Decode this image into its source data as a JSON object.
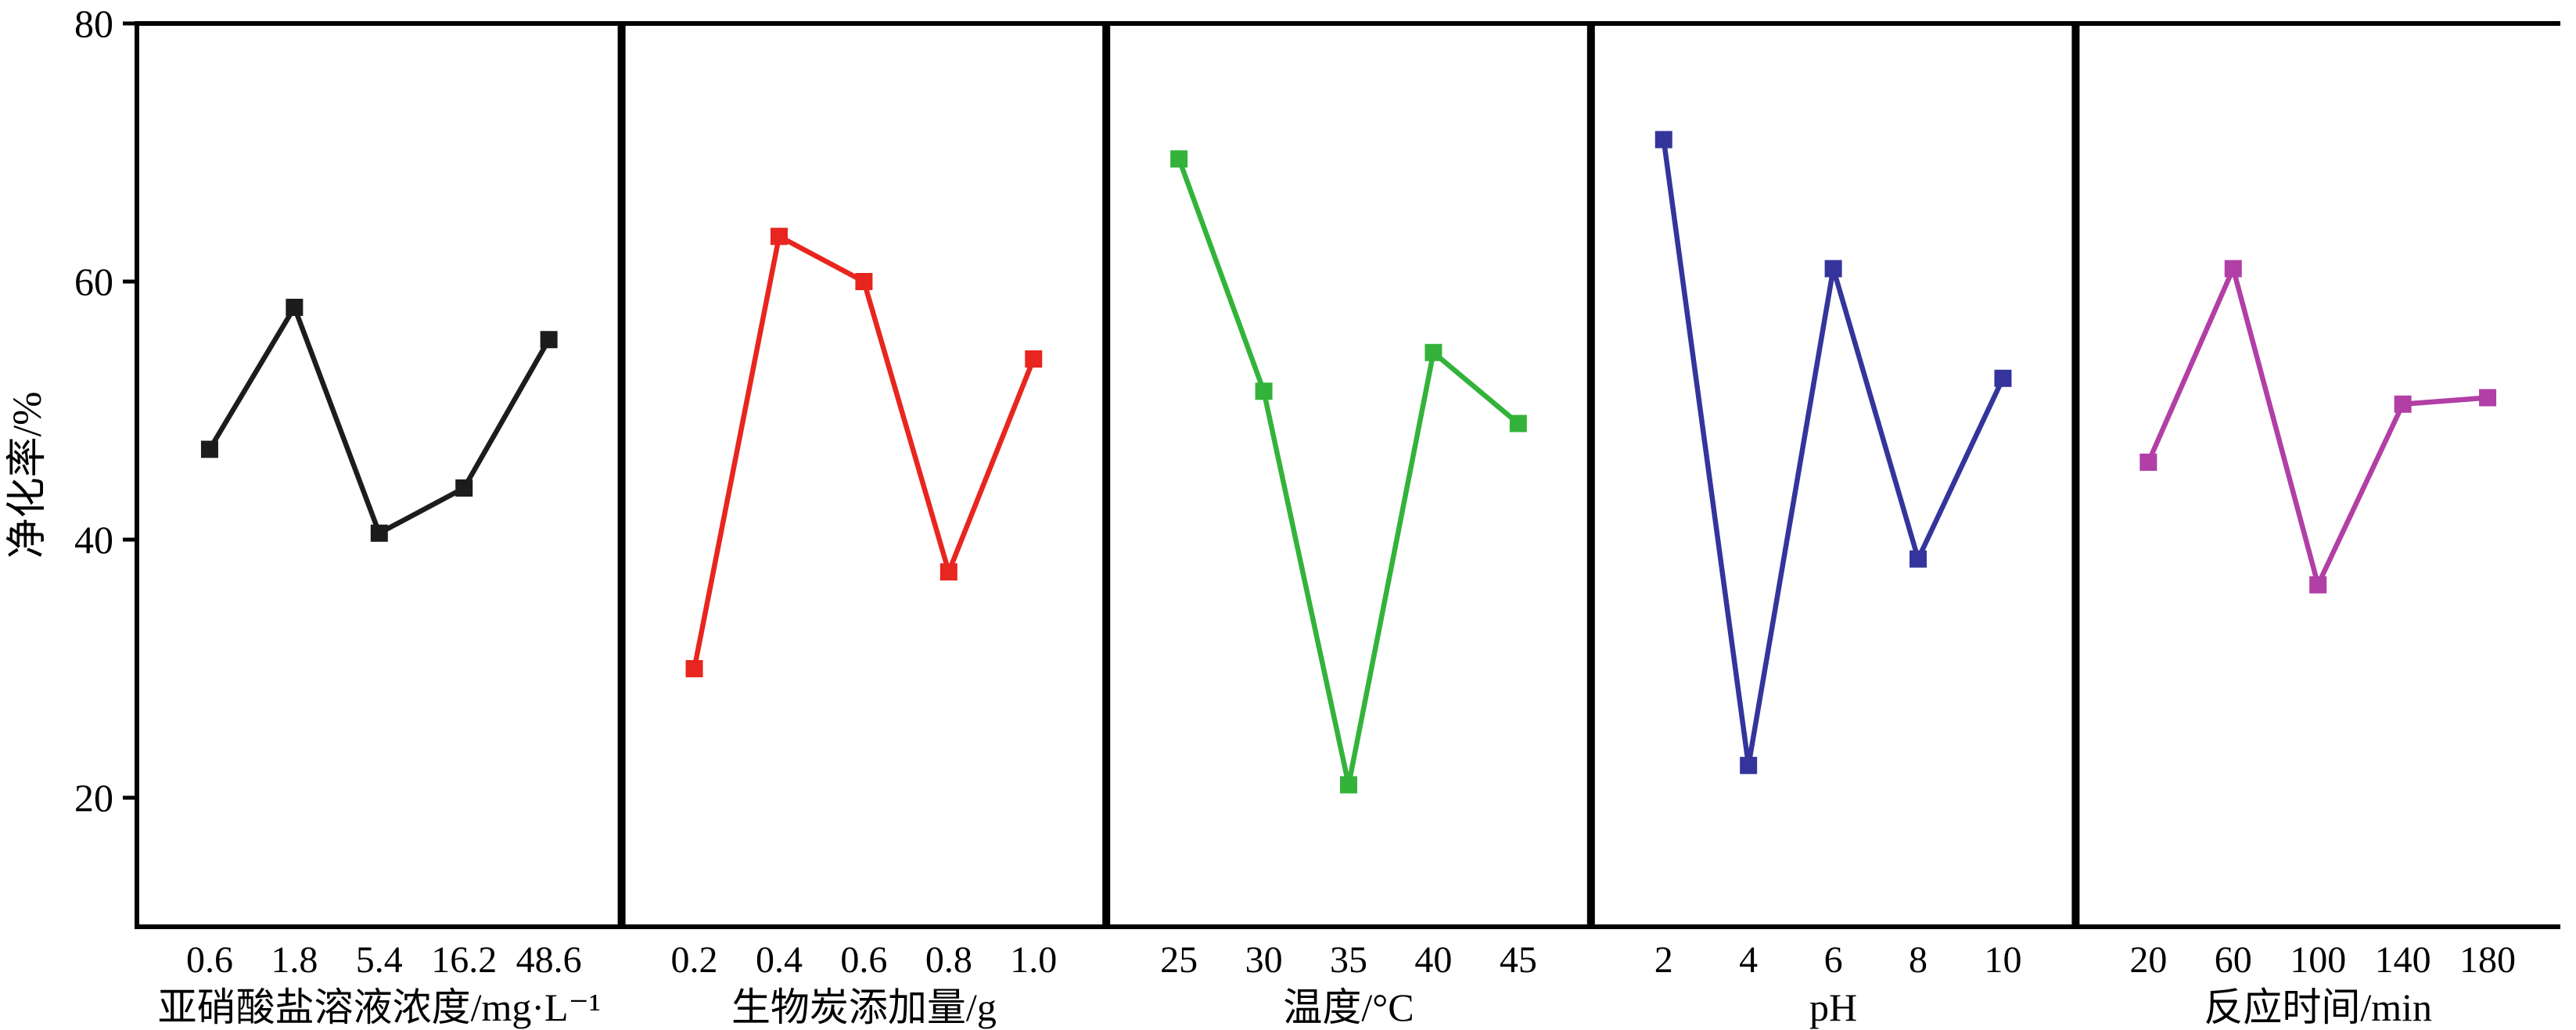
{
  "figure": {
    "background": "#ffffff"
  },
  "chart_data": {
    "type": "line",
    "title": "",
    "ylabel": "净化率/%",
    "ylim": [
      10,
      80
    ],
    "yticks": [
      20,
      40,
      60,
      80
    ],
    "grid": false,
    "legend_position": "none",
    "marker": "square",
    "panels": [
      {
        "xlabel": "亚硝酸盐溶液浓度/mg·L⁻¹",
        "color": "#1c1c1c",
        "categories": [
          "0.6",
          "1.8",
          "5.4",
          "16.2",
          "48.6"
        ],
        "values": [
          47,
          58,
          40.5,
          44,
          55.5
        ]
      },
      {
        "xlabel": "生物炭添加量/g",
        "color": "#e8251f",
        "categories": [
          "0.2",
          "0.4",
          "0.6",
          "0.8",
          "1.0"
        ],
        "values": [
          30,
          63.5,
          60,
          37.5,
          54
        ]
      },
      {
        "xlabel": "温度/°C",
        "color": "#33b33a",
        "categories": [
          "25",
          "30",
          "35",
          "40",
          "45"
        ],
        "values": [
          69.5,
          51.5,
          21,
          54.5,
          49
        ]
      },
      {
        "xlabel": "pH",
        "color": "#34349c",
        "categories": [
          "2",
          "4",
          "6",
          "8",
          "10"
        ],
        "values": [
          71,
          22.5,
          61,
          38.5,
          52.5
        ]
      },
      {
        "xlabel": "反应时间/min",
        "color": "#b13fa5",
        "categories": [
          "20",
          "60",
          "100",
          "140",
          "180"
        ],
        "values": [
          46,
          61,
          36.5,
          50.5,
          51
        ]
      }
    ]
  }
}
